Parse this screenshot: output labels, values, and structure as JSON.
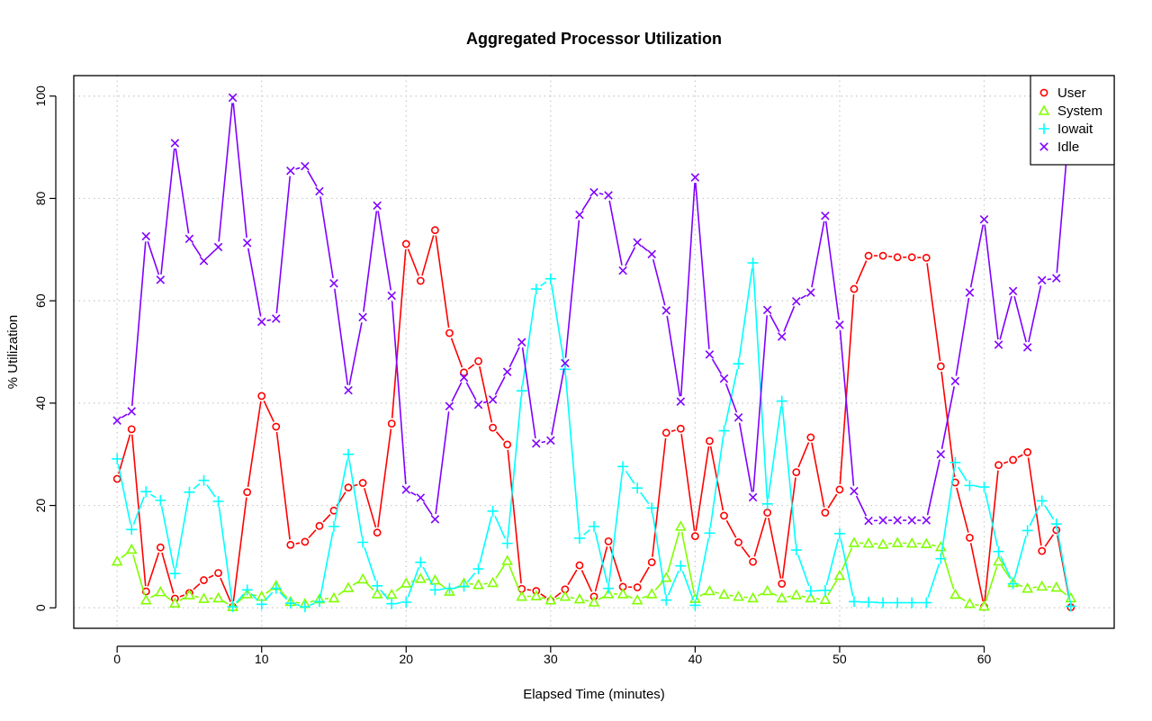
{
  "chart_data": {
    "type": "line",
    "title": "Aggregated Processor Utilization",
    "xlabel": "Elapsed Time (minutes)",
    "ylabel": "% Utilization",
    "xlim": [
      -3,
      69
    ],
    "ylim": [
      -4,
      104
    ],
    "x_ticks": [
      "0",
      "10",
      "20",
      "30",
      "40",
      "50",
      "60"
    ],
    "y_ticks": [
      "0",
      "20",
      "40",
      "60",
      "80",
      "100"
    ],
    "grid": true,
    "legend_position": "top-right",
    "x": [
      0,
      1,
      2,
      3,
      4,
      5,
      6,
      7,
      8,
      9,
      10,
      11,
      12,
      13,
      14,
      15,
      16,
      17,
      18,
      19,
      20,
      21,
      22,
      23,
      24,
      25,
      26,
      27,
      28,
      29,
      30,
      31,
      32,
      33,
      34,
      35,
      36,
      37,
      38,
      39,
      40,
      41,
      42,
      43,
      44,
      45,
      46,
      47,
      48,
      49,
      50,
      51,
      52,
      53,
      54,
      55,
      56,
      57,
      58,
      59,
      60,
      61,
      62,
      63,
      64,
      65,
      66
    ],
    "series": [
      {
        "name": "User",
        "color": "#ff0000",
        "marker": "circle",
        "values": [
          25.2,
          34.9,
          3.2,
          11.8,
          1.8,
          2.9,
          5.4,
          6.8,
          0.2,
          22.6,
          41.4,
          35.4,
          12.3,
          12.9,
          16.0,
          19.0,
          23.5,
          24.4,
          14.7,
          36.0,
          71.1,
          63.9,
          73.8,
          53.7,
          46.0,
          48.2,
          35.2,
          31.9,
          3.7,
          3.3,
          1.4,
          3.6,
          8.3,
          2.2,
          13.0,
          4.1,
          4.0,
          8.9,
          34.2,
          35.0,
          14.0,
          32.6,
          18.0,
          12.8,
          9.0,
          18.6,
          4.7,
          26.5,
          33.3,
          18.6,
          23.1,
          62.3,
          68.8,
          68.8,
          68.5,
          68.5,
          68.4,
          47.2,
          24.5,
          13.7,
          0.2,
          27.9,
          28.9,
          30.4,
          11.1,
          15.2,
          0.1
        ]
      },
      {
        "name": "System",
        "color": "#80ff00",
        "marker": "triangle",
        "values": [
          9.1,
          11.4,
          1.5,
          3.1,
          0.9,
          2.5,
          1.8,
          1.9,
          0.2,
          2.7,
          2.2,
          4.3,
          1.2,
          0.8,
          1.7,
          1.9,
          3.9,
          5.6,
          2.7,
          2.6,
          4.8,
          5.7,
          5.4,
          3.2,
          4.8,
          4.5,
          4.9,
          9.2,
          2.2,
          2.3,
          1.5,
          2.2,
          1.7,
          1.1,
          2.7,
          2.7,
          1.5,
          2.7,
          5.9,
          15.9,
          1.8,
          3.3,
          2.6,
          2.2,
          1.9,
          3.3,
          1.9,
          2.5,
          1.9,
          1.6,
          6.3,
          12.7,
          12.6,
          12.4,
          12.7,
          12.6,
          12.5,
          11.9,
          2.6,
          0.8,
          0.3,
          9.1,
          4.9,
          3.8,
          4.2,
          4.0,
          1.9
        ]
      },
      {
        "name": "Iowait",
        "color": "#00ffff",
        "marker": "plus",
        "values": [
          29.1,
          15.3,
          22.7,
          21.0,
          6.7,
          22.6,
          24.9,
          20.8,
          0.2,
          3.5,
          0.7,
          3.8,
          0.9,
          0.2,
          1.2,
          15.9,
          30.0,
          12.8,
          4.3,
          0.8,
          1.1,
          8.9,
          3.5,
          3.8,
          4.2,
          7.6,
          18.9,
          12.6,
          42.4,
          62.3,
          64.3,
          46.6,
          13.6,
          15.9,
          3.8,
          27.6,
          23.4,
          19.5,
          1.5,
          8.2,
          0.5,
          14.6,
          34.6,
          47.7,
          67.4,
          20.3,
          40.4,
          11.3,
          3.3,
          3.4,
          14.5,
          1.2,
          1.1,
          1.0,
          1.0,
          1.0,
          1.0,
          9.6,
          28.4,
          23.9,
          23.6,
          11.0,
          4.7,
          15.1,
          20.9,
          16.4,
          0.3
        ]
      },
      {
        "name": "Idle",
        "color": "#8000ff",
        "marker": "x",
        "values": [
          36.6,
          38.4,
          72.6,
          64.1,
          90.8,
          72.1,
          67.8,
          70.5,
          99.7,
          71.3,
          55.9,
          56.5,
          85.4,
          86.3,
          81.4,
          63.4,
          42.5,
          56.8,
          78.6,
          61.0,
          23.1,
          21.5,
          17.3,
          39.4,
          45.0,
          39.7,
          40.7,
          46.1,
          51.9,
          32.1,
          32.7,
          47.8,
          76.8,
          81.2,
          80.6,
          65.9,
          71.4,
          69.1,
          58.1,
          40.3,
          84.1,
          49.5,
          44.8,
          37.2,
          21.6,
          58.2,
          53.0,
          59.9,
          61.6,
          76.6,
          55.3,
          22.8,
          17.0,
          17.1,
          17.1,
          17.1,
          17.1,
          30.0,
          44.3,
          61.6,
          75.9,
          51.4,
          61.9,
          50.9,
          64.0,
          64.4,
          97.8
        ]
      }
    ]
  }
}
